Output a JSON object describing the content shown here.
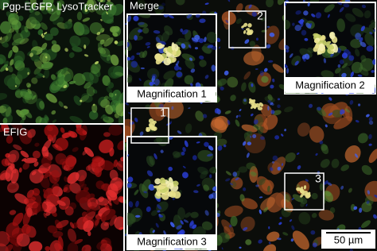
{
  "panels": {
    "green": {
      "label": "Pgp-EGFP, LysoTracker"
    },
    "red": {
      "label": "EFIG"
    },
    "merge": {
      "label": "Merge"
    }
  },
  "magnifications": [
    {
      "label": "Magnification 1",
      "region": "1"
    },
    {
      "label": "Magnification 2",
      "region": "2"
    },
    {
      "label": "Magnification 3",
      "region": "3"
    }
  ],
  "scale_bar": {
    "label": "50 µm"
  }
}
